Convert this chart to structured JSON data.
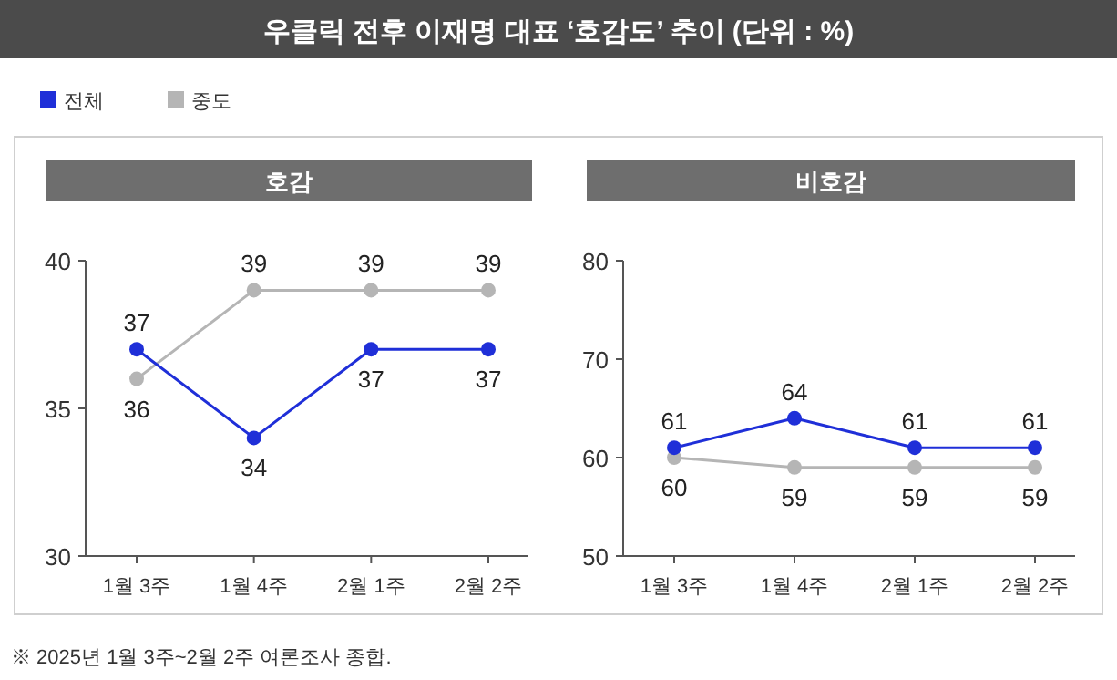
{
  "chart_data": [
    {
      "type": "line",
      "title": "우클릭 전후 이재명 대표 ‘호감도’ 추이 (단위 : %)",
      "subtitle": "호감",
      "categories": [
        "1월 3주",
        "1월 4주",
        "2월 1주",
        "2월 2주"
      ],
      "series": [
        {
          "name": "전체",
          "color": "#1f2fd8",
          "values": [
            37,
            34,
            37,
            37
          ]
        },
        {
          "name": "중도",
          "color": "#b5b5b5",
          "values": [
            36,
            39,
            39,
            39
          ]
        }
      ],
      "ylim": [
        30,
        40
      ],
      "yticks": [
        30,
        35,
        40
      ],
      "data_labels": true,
      "marker": "circle",
      "legend": "top left",
      "grid": false,
      "annotations": [
        "※ 2025년 1월 3주~2월 2주 여론조사 종합."
      ]
    },
    {
      "type": "line",
      "subtitle": "비호감",
      "categories": [
        "1월 3주",
        "1월 4주",
        "2월 1주",
        "2월 2주"
      ],
      "series": [
        {
          "color": "#1f2fd8",
          "values": [
            61,
            64,
            61,
            61
          ]
        },
        {
          "color": "#b5b5b5",
          "values": [
            60,
            59,
            59,
            59
          ]
        }
      ],
      "ylim": [
        50,
        80
      ],
      "yticks": [
        50,
        60,
        70,
        80
      ],
      "data_labels": true,
      "marker": "circle",
      "grid": false
    }
  ]
}
